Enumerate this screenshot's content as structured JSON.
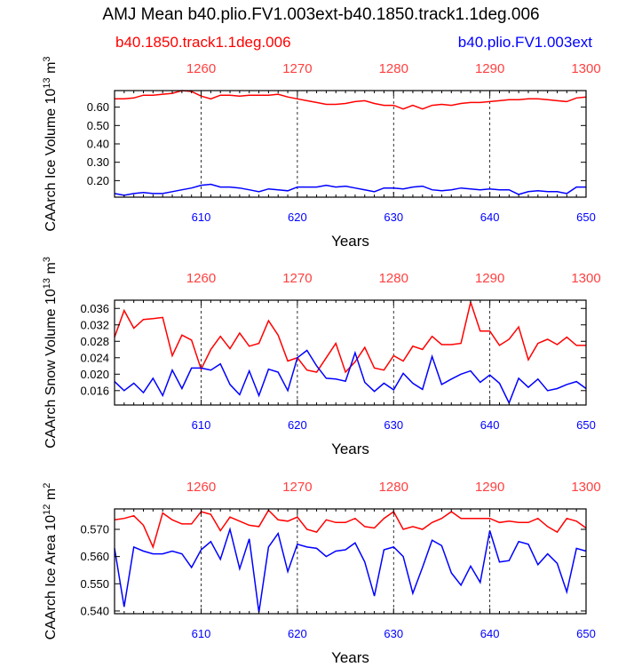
{
  "title": "AMJ Mean b40.plio.FV1.003ext-b40.1850.track1.1deg.006",
  "legend": {
    "left_label": "b40.1850.track1.1deg.006",
    "right_label": "b40.plio.FV1.003ext",
    "left_color": "#ff0000",
    "right_color": "#0000ff"
  },
  "chart_data": [
    {
      "type": "line",
      "ylabel": "CAArch Ice Volume 10",
      "ylabel_sup": "13",
      "ylabel_unit": "m",
      "ylabel_unit_sup": "3",
      "xlabel": "Years",
      "xlim": [
        601,
        650
      ],
      "xticks": [
        610,
        620,
        630,
        640,
        650
      ],
      "top_xlim": [
        1251,
        1300
      ],
      "top_xticks": [
        1260,
        1270,
        1280,
        1290,
        1300
      ],
      "ylim": [
        0.11,
        0.69
      ],
      "yticks": [
        0.2,
        0.3,
        0.4,
        0.5,
        0.6
      ],
      "ytick_labels": [
        "0.20",
        "0.30",
        "0.40",
        "0.50",
        "0.60"
      ],
      "series": [
        {
          "name": "b40.1850.track1.1deg.006",
          "color": "#ff0000",
          "x_axis": "top",
          "values": [
            0.645,
            0.645,
            0.65,
            0.665,
            0.665,
            0.67,
            0.675,
            0.69,
            0.685,
            0.66,
            0.645,
            0.665,
            0.665,
            0.66,
            0.665,
            0.665,
            0.665,
            0.67,
            0.655,
            0.645,
            0.635,
            0.625,
            0.615,
            0.615,
            0.62,
            0.63,
            0.635,
            0.62,
            0.61,
            0.61,
            0.59,
            0.61,
            0.59,
            0.61,
            0.615,
            0.61,
            0.62,
            0.625,
            0.625,
            0.63,
            0.635,
            0.64,
            0.64,
            0.645,
            0.645,
            0.64,
            0.635,
            0.63,
            0.65,
            0.655
          ]
        },
        {
          "name": "b40.plio.FV1.003ext",
          "color": "#0000ff",
          "x_axis": "bottom",
          "values": [
            0.13,
            0.12,
            0.13,
            0.135,
            0.13,
            0.13,
            0.14,
            0.15,
            0.16,
            0.175,
            0.18,
            0.165,
            0.165,
            0.16,
            0.15,
            0.14,
            0.155,
            0.15,
            0.145,
            0.165,
            0.165,
            0.165,
            0.175,
            0.165,
            0.17,
            0.16,
            0.15,
            0.14,
            0.16,
            0.16,
            0.155,
            0.165,
            0.17,
            0.15,
            0.145,
            0.15,
            0.16,
            0.155,
            0.15,
            0.155,
            0.15,
            0.15,
            0.125,
            0.14,
            0.145,
            0.14,
            0.14,
            0.13,
            0.165,
            0.165
          ]
        }
      ]
    },
    {
      "type": "line",
      "ylabel": "CAArch Snow Volume 10",
      "ylabel_sup": "13",
      "ylabel_unit": "m",
      "ylabel_unit_sup": "3",
      "xlabel": "Years",
      "xlim": [
        601,
        650
      ],
      "xticks": [
        610,
        620,
        630,
        640,
        650
      ],
      "top_xlim": [
        1251,
        1300
      ],
      "top_xticks": [
        1260,
        1270,
        1280,
        1290,
        1300
      ],
      "ylim": [
        0.0125,
        0.038
      ],
      "yticks": [
        0.016,
        0.02,
        0.024,
        0.028,
        0.032,
        0.036
      ],
      "ytick_labels": [
        "0.016",
        "0.020",
        "0.024",
        "0.028",
        "0.032",
        "0.036"
      ],
      "series": [
        {
          "name": "b40.1850.track1.1deg.006",
          "color": "#ff0000",
          "x_axis": "top",
          "values": [
            0.029,
            0.0355,
            0.0312,
            0.0333,
            0.0335,
            0.0338,
            0.0245,
            0.0295,
            0.0283,
            0.0212,
            0.026,
            0.0292,
            0.0262,
            0.03,
            0.0268,
            0.0275,
            0.033,
            0.0295,
            0.0232,
            0.024,
            0.021,
            0.0205,
            0.024,
            0.0275,
            0.0205,
            0.023,
            0.0265,
            0.0215,
            0.021,
            0.0245,
            0.0232,
            0.0268,
            0.026,
            0.0292,
            0.0272,
            0.0272,
            0.0275,
            0.0375,
            0.0305,
            0.0305,
            0.027,
            0.0285,
            0.0315,
            0.0235,
            0.0275,
            0.0285,
            0.0272,
            0.029,
            0.027,
            0.027
          ]
        },
        {
          "name": "b40.plio.FV1.003ext",
          "color": "#0000ff",
          "x_axis": "bottom",
          "values": [
            0.0182,
            0.016,
            0.0178,
            0.0155,
            0.019,
            0.0148,
            0.021,
            0.0165,
            0.0215,
            0.0215,
            0.021,
            0.0225,
            0.0175,
            0.015,
            0.0208,
            0.0148,
            0.0212,
            0.0205,
            0.016,
            0.024,
            0.0258,
            0.022,
            0.019,
            0.0188,
            0.0183,
            0.0252,
            0.018,
            0.0158,
            0.0178,
            0.0162,
            0.0202,
            0.0178,
            0.0163,
            0.0243,
            0.0175,
            0.0188,
            0.02,
            0.0208,
            0.018,
            0.0198,
            0.0178,
            0.013,
            0.019,
            0.0168,
            0.0188,
            0.016,
            0.0165,
            0.0175,
            0.0182,
            0.0165
          ]
        }
      ]
    },
    {
      "type": "line",
      "ylabel": "CAArch Ice Area 10",
      "ylabel_sup": "12",
      "ylabel_unit": "m",
      "ylabel_unit_sup": "2",
      "xlabel": "Years",
      "xlim": [
        601,
        650
      ],
      "xticks": [
        610,
        620,
        630,
        640,
        650
      ],
      "top_xlim": [
        1251,
        1300
      ],
      "top_xticks": [
        1260,
        1270,
        1280,
        1290,
        1300
      ],
      "ylim": [
        0.539,
        0.5775
      ],
      "yticks": [
        0.54,
        0.55,
        0.56,
        0.57
      ],
      "ytick_labels": [
        "0.540",
        "0.550",
        "0.560",
        "0.570"
      ],
      "series": [
        {
          "name": "b40.1850.track1.1deg.006",
          "color": "#ff0000",
          "x_axis": "top",
          "values": [
            0.5735,
            0.574,
            0.575,
            0.5715,
            0.5635,
            0.576,
            0.5735,
            0.572,
            0.572,
            0.5765,
            0.5755,
            0.5695,
            0.5745,
            0.573,
            0.5715,
            0.571,
            0.577,
            0.5735,
            0.573,
            0.5745,
            0.57,
            0.569,
            0.5735,
            0.5725,
            0.5725,
            0.574,
            0.571,
            0.5705,
            0.574,
            0.5765,
            0.57,
            0.571,
            0.57,
            0.5725,
            0.574,
            0.5765,
            0.574,
            0.574,
            0.574,
            0.574,
            0.5725,
            0.573,
            0.5725,
            0.5725,
            0.574,
            0.571,
            0.569,
            0.574,
            0.573,
            0.5705
          ]
        },
        {
          "name": "b40.plio.FV1.003ext",
          "color": "#0000ff",
          "x_axis": "bottom",
          "values": [
            0.563,
            0.5415,
            0.5635,
            0.562,
            0.561,
            0.561,
            0.562,
            0.561,
            0.556,
            0.5625,
            0.5655,
            0.559,
            0.57,
            0.5555,
            0.5665,
            0.5395,
            0.5635,
            0.5685,
            0.5545,
            0.5645,
            0.5635,
            0.563,
            0.56,
            0.562,
            0.5625,
            0.565,
            0.558,
            0.5455,
            0.5625,
            0.5635,
            0.56,
            0.5465,
            0.556,
            0.566,
            0.564,
            0.554,
            0.5495,
            0.5565,
            0.5505,
            0.5695,
            0.558,
            0.5585,
            0.5655,
            0.5645,
            0.557,
            0.561,
            0.5575,
            0.547,
            0.563,
            0.562
          ]
        }
      ]
    }
  ]
}
